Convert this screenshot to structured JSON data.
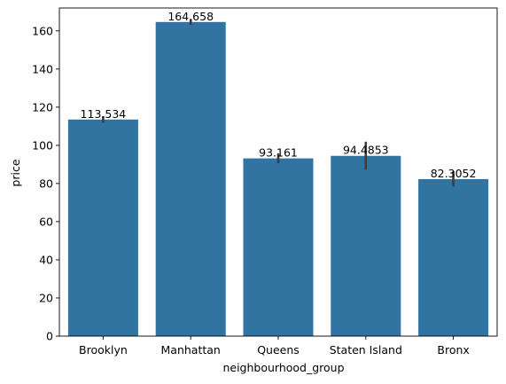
{
  "chart_data": {
    "type": "bar",
    "title": "",
    "xlabel": "neighbourhood_group",
    "ylabel": "price",
    "categories": [
      "Brooklyn",
      "Manhattan",
      "Queens",
      "Staten Island",
      "Bronx"
    ],
    "values": [
      113.534,
      164.658,
      93.161,
      94.4853,
      82.3052
    ],
    "value_labels": [
      "113.534",
      "164.658",
      "93.161",
      "94.4853",
      "82.3052"
    ],
    "error_low": [
      111.8,
      163.2,
      90.6,
      87.2,
      78.4
    ],
    "error_high": [
      115.3,
      166.2,
      95.8,
      101.9,
      86.4
    ],
    "ylim": [
      0,
      172
    ],
    "yticks": [
      0,
      20,
      40,
      60,
      80,
      100,
      120,
      140,
      160
    ],
    "grid": false,
    "legend": "none",
    "bar_color": "#3274a1",
    "error_color": "#3d3d3d"
  }
}
